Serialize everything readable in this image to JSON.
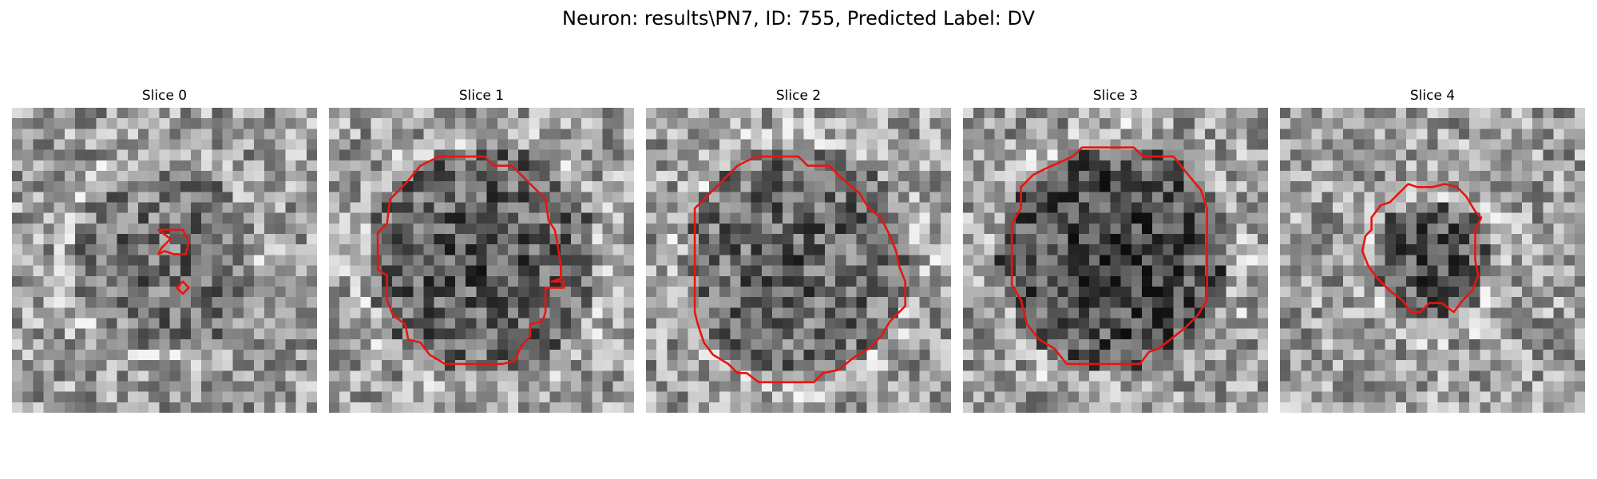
{
  "figure": {
    "title": "Neuron: results\\PN7, ID: 755, Predicted Label: DV"
  },
  "panels": [
    {
      "title": "Slice 0",
      "contour_color": "#e8150f",
      "seed": 11,
      "dark_blob": {
        "r": 0.3,
        "strength": 0.2
      },
      "contours": [
        [
          [
            0.48,
            0.4
          ],
          [
            0.56,
            0.4
          ],
          [
            0.58,
            0.44
          ],
          [
            0.57,
            0.48
          ],
          [
            0.53,
            0.48
          ],
          [
            0.5,
            0.47
          ],
          [
            0.48,
            0.48
          ],
          [
            0.49,
            0.46
          ],
          [
            0.52,
            0.43
          ]
        ],
        [
          [
            0.56,
            0.57
          ],
          [
            0.58,
            0.59
          ],
          [
            0.56,
            0.61
          ],
          [
            0.54,
            0.59
          ]
        ]
      ]
    },
    {
      "title": "Slice 1",
      "contour_color": "#e8150f",
      "seed": 23,
      "dark_blob": {
        "r": 0.38,
        "strength": 0.3
      },
      "contours": [
        [
          [
            0.36,
            0.16
          ],
          [
            0.51,
            0.16
          ],
          [
            0.54,
            0.19
          ],
          [
            0.6,
            0.19
          ],
          [
            0.64,
            0.23
          ],
          [
            0.71,
            0.3
          ],
          [
            0.72,
            0.37
          ],
          [
            0.74,
            0.4
          ],
          [
            0.75,
            0.45
          ],
          [
            0.76,
            0.52
          ],
          [
            0.76,
            0.56
          ],
          [
            0.73,
            0.57
          ],
          [
            0.77,
            0.57
          ],
          [
            0.77,
            0.59
          ],
          [
            0.71,
            0.59
          ],
          [
            0.71,
            0.67
          ],
          [
            0.7,
            0.7
          ],
          [
            0.66,
            0.71
          ],
          [
            0.66,
            0.75
          ],
          [
            0.63,
            0.78
          ],
          [
            0.61,
            0.83
          ],
          [
            0.57,
            0.84
          ],
          [
            0.38,
            0.84
          ],
          [
            0.33,
            0.81
          ],
          [
            0.3,
            0.77
          ],
          [
            0.26,
            0.76
          ],
          [
            0.25,
            0.71
          ],
          [
            0.21,
            0.68
          ],
          [
            0.19,
            0.63
          ],
          [
            0.19,
            0.55
          ],
          [
            0.16,
            0.53
          ],
          [
            0.16,
            0.41
          ],
          [
            0.19,
            0.38
          ],
          [
            0.2,
            0.3
          ],
          [
            0.25,
            0.25
          ],
          [
            0.3,
            0.19
          ]
        ]
      ]
    },
    {
      "title": "Slice 2",
      "contour_color": "#e8150f",
      "seed": 37,
      "dark_blob": {
        "r": 0.38,
        "strength": 0.25
      },
      "contours": [
        [
          [
            0.36,
            0.16
          ],
          [
            0.5,
            0.16
          ],
          [
            0.53,
            0.19
          ],
          [
            0.6,
            0.19
          ],
          [
            0.64,
            0.23
          ],
          [
            0.7,
            0.28
          ],
          [
            0.73,
            0.33
          ],
          [
            0.77,
            0.36
          ],
          [
            0.8,
            0.42
          ],
          [
            0.82,
            0.47
          ],
          [
            0.83,
            0.52
          ],
          [
            0.85,
            0.57
          ],
          [
            0.85,
            0.65
          ],
          [
            0.8,
            0.7
          ],
          [
            0.77,
            0.75
          ],
          [
            0.73,
            0.79
          ],
          [
            0.68,
            0.82
          ],
          [
            0.63,
            0.86
          ],
          [
            0.58,
            0.87
          ],
          [
            0.55,
            0.9
          ],
          [
            0.37,
            0.9
          ],
          [
            0.33,
            0.87
          ],
          [
            0.3,
            0.87
          ],
          [
            0.27,
            0.84
          ],
          [
            0.22,
            0.81
          ],
          [
            0.19,
            0.77
          ],
          [
            0.17,
            0.71
          ],
          [
            0.16,
            0.67
          ],
          [
            0.16,
            0.33
          ],
          [
            0.2,
            0.29
          ],
          [
            0.24,
            0.25
          ],
          [
            0.3,
            0.19
          ]
        ]
      ]
    },
    {
      "title": "Slice 3",
      "contour_color": "#e8150f",
      "seed": 53,
      "dark_blob": {
        "r": 0.38,
        "strength": 0.4
      },
      "contours": [
        [
          [
            0.36,
            0.16
          ],
          [
            0.39,
            0.13
          ],
          [
            0.56,
            0.13
          ],
          [
            0.59,
            0.16
          ],
          [
            0.69,
            0.16
          ],
          [
            0.73,
            0.21
          ],
          [
            0.78,
            0.27
          ],
          [
            0.8,
            0.33
          ],
          [
            0.8,
            0.63
          ],
          [
            0.77,
            0.68
          ],
          [
            0.73,
            0.72
          ],
          [
            0.68,
            0.76
          ],
          [
            0.64,
            0.79
          ],
          [
            0.61,
            0.8
          ],
          [
            0.58,
            0.84
          ],
          [
            0.34,
            0.84
          ],
          [
            0.3,
            0.79
          ],
          [
            0.25,
            0.76
          ],
          [
            0.21,
            0.71
          ],
          [
            0.19,
            0.63
          ],
          [
            0.16,
            0.58
          ],
          [
            0.16,
            0.38
          ],
          [
            0.19,
            0.33
          ],
          [
            0.19,
            0.26
          ],
          [
            0.23,
            0.22
          ],
          [
            0.27,
            0.2
          ]
        ]
      ]
    },
    {
      "title": "Slice 4",
      "contour_color": "#e8150f",
      "seed": 71,
      "dark_blob": {
        "r": 0.2,
        "strength": 0.35
      },
      "contours": [
        [
          [
            0.42,
            0.25
          ],
          [
            0.45,
            0.26
          ],
          [
            0.5,
            0.26
          ],
          [
            0.54,
            0.25
          ],
          [
            0.58,
            0.26
          ],
          [
            0.61,
            0.29
          ],
          [
            0.64,
            0.34
          ],
          [
            0.66,
            0.36
          ],
          [
            0.64,
            0.4
          ],
          [
            0.64,
            0.5
          ],
          [
            0.65,
            0.55
          ],
          [
            0.63,
            0.6
          ],
          [
            0.6,
            0.63
          ],
          [
            0.57,
            0.67
          ],
          [
            0.53,
            0.64
          ],
          [
            0.49,
            0.64
          ],
          [
            0.46,
            0.67
          ],
          [
            0.43,
            0.67
          ],
          [
            0.4,
            0.63
          ],
          [
            0.36,
            0.6
          ],
          [
            0.32,
            0.56
          ],
          [
            0.29,
            0.52
          ],
          [
            0.27,
            0.47
          ],
          [
            0.28,
            0.42
          ],
          [
            0.3,
            0.4
          ],
          [
            0.3,
            0.36
          ],
          [
            0.33,
            0.32
          ],
          [
            0.36,
            0.31
          ],
          [
            0.38,
            0.29
          ]
        ]
      ]
    }
  ]
}
